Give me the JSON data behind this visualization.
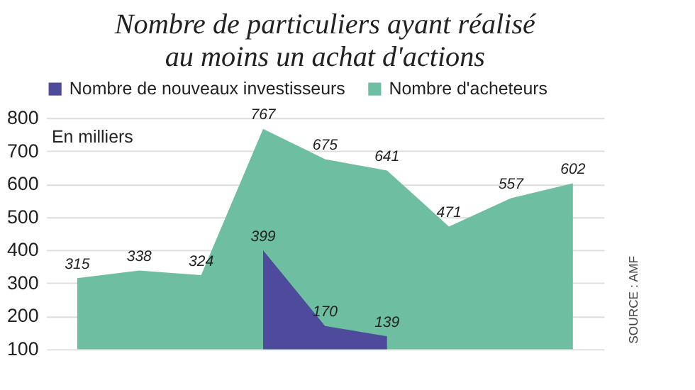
{
  "chart_data": {
    "type": "area",
    "title": [
      "Nombre de particuliers ayant réalisé",
      "au moins un achat d'actions"
    ],
    "categories": [
      null,
      null,
      null,
      null,
      null,
      null,
      null,
      null,
      null
    ],
    "series": [
      {
        "name": "Nombre de nouveaux investisseurs",
        "color": "#4f4b9c",
        "values": [
          null,
          null,
          null,
          399,
          170,
          139,
          null,
          null,
          null
        ]
      },
      {
        "name": "Nombre d'acheteurs",
        "color": "#6ebfa1",
        "values": [
          315,
          338,
          324,
          767,
          675,
          641,
          471,
          557,
          602
        ]
      }
    ],
    "ylim": [
      100,
      800
    ],
    "yticks": [
      100,
      200,
      300,
      400,
      500,
      600,
      700,
      800
    ],
    "grid": "y",
    "legend": "top",
    "data_labels": true,
    "tick_labels": "y",
    "annotations": [
      "En milliers",
      "SOURCE : AMF"
    ]
  }
}
